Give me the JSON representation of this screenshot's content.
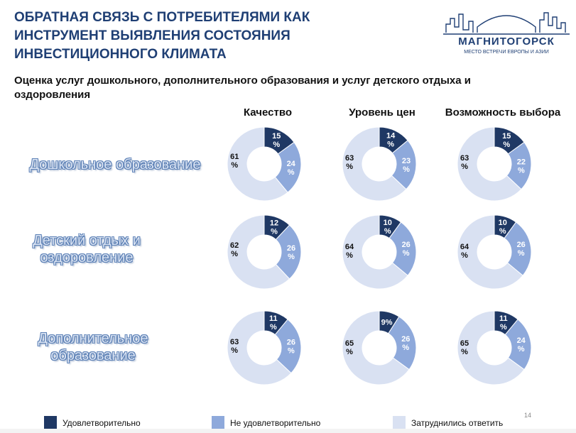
{
  "header": {
    "title": "ОБРАТНАЯ СВЯЗЬ С ПОТРЕБИТЕЛЯМИ КАК\nИНСТРУМЕНТ ВЫЯВЛЕНИЯ СОСТОЯНИЯ\nИНВЕСТИЦИОННОГО КЛИМАТА",
    "subtitle": "Оценка услуг дошкольного, дополнительного образования и услуг детского отдыха и оздоровления",
    "page_number": "14"
  },
  "logo": {
    "name": "МАГНИТОГОРСК",
    "tagline": "МЕСТО ВСТРЕЧИ ЕВРОПЫ И АЗИИ"
  },
  "colors": {
    "satisfied": "#1f3864",
    "unsatisfied": "#8ea9db",
    "undecided": "#d9e1f2",
    "zero": "#ffffff"
  },
  "legend": {
    "satisfied": "Удовлетворительно",
    "unsatisfied": "Не удовлетворительно",
    "undecided": "Затруднились ответить"
  },
  "chart_data": {
    "type": "pie",
    "subtype": "donut-grid",
    "columns": [
      "Качество",
      "Уровень цен",
      "Возможность выбора"
    ],
    "rows": [
      "Дошкольное образование",
      "Детский отдых и оздоровление",
      "Дополнительное образование"
    ],
    "series_names": [
      "",
      "Удовлетворительно",
      "Не удовлетворительно",
      "Затруднились ответить"
    ],
    "charts": [
      {
        "row": "Дошкольное образование",
        "column": "Качество",
        "values": [
          0,
          15,
          24,
          61
        ],
        "labels": [
          "0",
          "15 %",
          "24 %",
          "61 %"
        ]
      },
      {
        "row": "Дошкольное образование",
        "column": "Уровень цен",
        "values": [
          0,
          14,
          23,
          63
        ],
        "labels": [
          "0",
          "14 %",
          "23 %",
          "63 %"
        ]
      },
      {
        "row": "Дошкольное образование",
        "column": "Возможность выбора",
        "values": [
          0,
          15,
          22,
          63
        ],
        "labels": [
          "0",
          "15 %",
          "22 %",
          "63 %"
        ]
      },
      {
        "row": "Детский отдых и оздоровление",
        "column": "Качество",
        "values": [
          0,
          12,
          26,
          62
        ],
        "labels": [
          "0",
          "12 %",
          "26 %",
          "62 %"
        ]
      },
      {
        "row": "Детский отдых и оздоровление",
        "column": "Уровень цен",
        "values": [
          0,
          10,
          26,
          64
        ],
        "labels": [
          "0",
          "10 %",
          "26 %",
          "64 %"
        ]
      },
      {
        "row": "Детский отдых и оздоровление",
        "column": "Возможность выбора",
        "values": [
          0,
          10,
          26,
          64
        ],
        "labels": [
          "0",
          "10 %",
          "26 %",
          "64 %"
        ]
      },
      {
        "row": "Дополнительное образование",
        "column": "Качество",
        "values": [
          0,
          11,
          26,
          63
        ],
        "labels": [
          "0",
          "11 %",
          "26 %",
          "63 %"
        ]
      },
      {
        "row": "Дополнительное образование",
        "column": "Уровень цен",
        "values": [
          0,
          9,
          26,
          65
        ],
        "labels": [
          "0",
          "9%",
          "26 %",
          "65 %"
        ]
      },
      {
        "row": "Дополнительное образование",
        "column": "Возможность выбора",
        "values": [
          0,
          11,
          24,
          65
        ],
        "labels": [
          "0",
          "11 %",
          "24 %",
          "65 %"
        ]
      }
    ]
  }
}
